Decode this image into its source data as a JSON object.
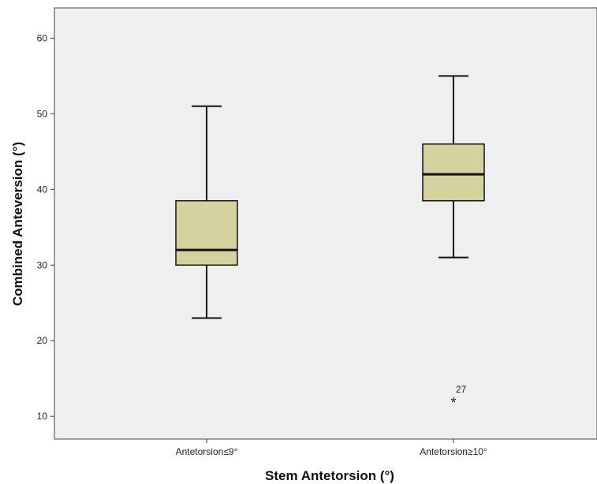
{
  "chart_data": {
    "type": "box",
    "xlabel": "Stem Antetorsion (°)",
    "ylabel": "Combined Anteversion (°)",
    "ylim": [
      7,
      64
    ],
    "yticks": [
      10,
      20,
      30,
      40,
      50,
      60
    ],
    "categories": [
      "Antetorsion≤9°",
      "Antetorsion≥10°"
    ],
    "boxes": [
      {
        "category": "Antetorsion≤9°",
        "whisker_low": 23,
        "q1": 30,
        "median": 32,
        "q3": 38.5,
        "whisker_high": 51,
        "outliers": []
      },
      {
        "category": "Antetorsion≥10°",
        "whisker_low": 31,
        "q1": 38.5,
        "median": 42,
        "q3": 46,
        "whisker_high": 55,
        "outliers": [
          {
            "value": 12,
            "label": "27",
            "marker": "*"
          }
        ]
      }
    ],
    "grid": false,
    "colors": {
      "plot_background": "#efefef",
      "box_fill": "#d6d2a0",
      "stroke": "#111111"
    }
  }
}
